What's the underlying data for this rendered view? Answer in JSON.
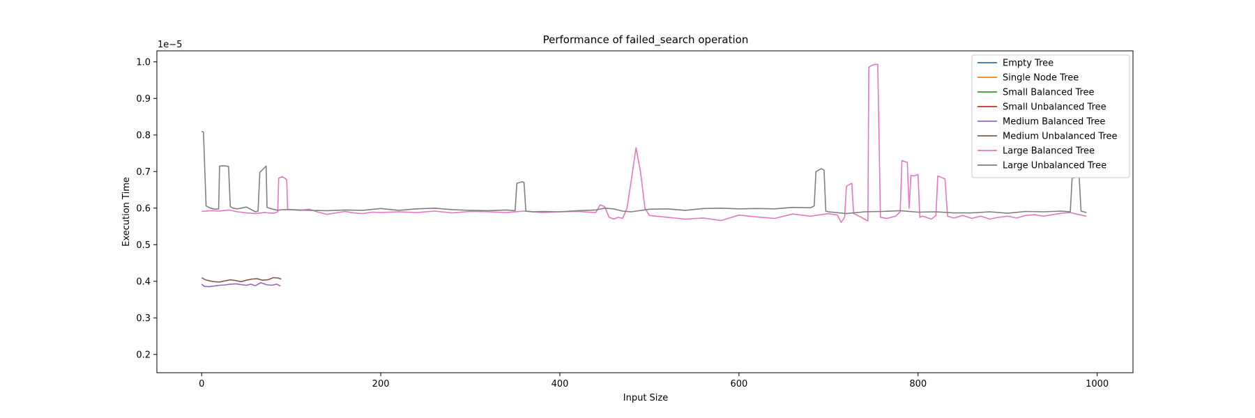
{
  "chart_data": {
    "type": "line",
    "title": "Performance of failed_search operation",
    "xlabel": "Input Size",
    "ylabel": "Execution Time",
    "y_scale_label": "1e−5",
    "y_scale": 1e-05,
    "xlim": [
      -50,
      1040
    ],
    "ylim": [
      0.15,
      1.03
    ],
    "xticks": [
      0,
      200,
      400,
      600,
      800,
      1000
    ],
    "yticks": [
      0.2,
      0.3,
      0.4,
      0.5,
      0.6,
      0.7,
      0.8,
      0.9,
      1.0
    ],
    "ytick_labels": [
      "0.2",
      "0.3",
      "0.4",
      "0.5",
      "0.6",
      "0.7",
      "0.8",
      "0.9",
      "1.0"
    ],
    "grid": false,
    "legend_position": "top-right",
    "series": [
      {
        "name": "Empty Tree",
        "color": "#1f77b4",
        "x": [],
        "y": []
      },
      {
        "name": "Single Node Tree",
        "color": "#ff7f0e",
        "x": [],
        "y": []
      },
      {
        "name": "Small Balanced Tree",
        "color": "#2ca02c",
        "x": [],
        "y": []
      },
      {
        "name": "Small Unbalanced Tree",
        "color": "#d62728",
        "x": [],
        "y": []
      },
      {
        "name": "Medium Balanced Tree",
        "color": "#9467bd",
        "x": [
          0,
          3,
          8,
          14,
          20,
          26,
          32,
          38,
          44,
          50,
          55,
          60,
          66,
          72,
          78,
          84,
          88
        ],
        "y": [
          0.392,
          0.386,
          0.385,
          0.387,
          0.389,
          0.39,
          0.392,
          0.393,
          0.391,
          0.389,
          0.392,
          0.388,
          0.396,
          0.391,
          0.389,
          0.392,
          0.387
        ]
      },
      {
        "name": "Medium Unbalanced Tree",
        "color": "#8c564b",
        "x": [
          0,
          4,
          9,
          14,
          20,
          26,
          32,
          38,
          44,
          50,
          56,
          62,
          68,
          74,
          80,
          85,
          89
        ],
        "y": [
          0.41,
          0.404,
          0.401,
          0.399,
          0.398,
          0.401,
          0.404,
          0.402,
          0.399,
          0.403,
          0.406,
          0.407,
          0.403,
          0.404,
          0.41,
          0.409,
          0.406
        ]
      },
      {
        "name": "Large Balanced Tree",
        "color": "#e377c2",
        "x": [
          0,
          10,
          20,
          30,
          40,
          50,
          60,
          70,
          80,
          85,
          86,
          90,
          95,
          96,
          100,
          110,
          120,
          130,
          140,
          150,
          160,
          170,
          180,
          190,
          200,
          220,
          240,
          260,
          280,
          300,
          320,
          340,
          360,
          380,
          400,
          420,
          440,
          445,
          450,
          455,
          460,
          465,
          470,
          475,
          480,
          485,
          490,
          495,
          500,
          520,
          540,
          560,
          580,
          600,
          620,
          640,
          660,
          680,
          700,
          710,
          714,
          718,
          720,
          726,
          728,
          735,
          740,
          744,
          745,
          748,
          752,
          755,
          758,
          765,
          775,
          780,
          782,
          788,
          790,
          792,
          795,
          798,
          800,
          802,
          805,
          815,
          820,
          822,
          830,
          833,
          840,
          850,
          860,
          870,
          880,
          890,
          900,
          910,
          920,
          930,
          940,
          950,
          960,
          970,
          980,
          988
        ],
        "y": [
          0.591,
          0.593,
          0.592,
          0.595,
          0.59,
          0.587,
          0.585,
          0.588,
          0.586,
          0.59,
          0.682,
          0.686,
          0.678,
          0.597,
          0.596,
          0.594,
          0.597,
          0.589,
          0.583,
          0.587,
          0.591,
          0.587,
          0.585,
          0.589,
          0.588,
          0.59,
          0.588,
          0.592,
          0.587,
          0.591,
          0.59,
          0.588,
          0.592,
          0.588,
          0.59,
          0.591,
          0.588,
          0.609,
          0.604,
          0.575,
          0.57,
          0.575,
          0.572,
          0.6,
          0.68,
          0.765,
          0.7,
          0.6,
          0.58,
          0.575,
          0.57,
          0.573,
          0.566,
          0.581,
          0.576,
          0.572,
          0.584,
          0.578,
          0.585,
          0.581,
          0.561,
          0.575,
          0.66,
          0.668,
          0.585,
          0.577,
          0.57,
          0.565,
          0.985,
          0.99,
          0.993,
          0.993,
          0.575,
          0.572,
          0.578,
          0.59,
          0.73,
          0.725,
          0.6,
          0.69,
          0.688,
          0.69,
          0.692,
          0.575,
          0.578,
          0.57,
          0.58,
          0.688,
          0.68,
          0.578,
          0.573,
          0.58,
          0.572,
          0.578,
          0.57,
          0.575,
          0.578,
          0.573,
          0.58,
          0.582,
          0.578,
          0.582,
          0.586,
          0.588,
          0.582,
          0.578
        ]
      },
      {
        "name": "Large Unbalanced Tree",
        "color": "#7f7f7f",
        "x": [
          0,
          2,
          5,
          10,
          15,
          19,
          20,
          25,
          30,
          32,
          35,
          40,
          50,
          60,
          63,
          65,
          68,
          72,
          73,
          78,
          85,
          90,
          100,
          120,
          140,
          160,
          180,
          200,
          220,
          240,
          260,
          280,
          300,
          320,
          340,
          350,
          352,
          358,
          360,
          362,
          370,
          380,
          400,
          420,
          440,
          450,
          460,
          470,
          480,
          500,
          520,
          540,
          560,
          580,
          600,
          620,
          640,
          660,
          680,
          684,
          686,
          692,
          695,
          697,
          700,
          720,
          740,
          760,
          780,
          800,
          820,
          840,
          860,
          880,
          900,
          920,
          940,
          960,
          970,
          972,
          978,
          980,
          982,
          988
        ],
        "y": [
          0.81,
          0.808,
          0.606,
          0.6,
          0.597,
          0.598,
          0.715,
          0.716,
          0.714,
          0.604,
          0.6,
          0.598,
          0.603,
          0.59,
          0.592,
          0.698,
          0.705,
          0.715,
          0.602,
          0.598,
          0.594,
          0.596,
          0.596,
          0.594,
          0.593,
          0.595,
          0.594,
          0.599,
          0.594,
          0.598,
          0.6,
          0.596,
          0.594,
          0.593,
          0.595,
          0.593,
          0.668,
          0.672,
          0.67,
          0.592,
          0.59,
          0.591,
          0.59,
          0.593,
          0.595,
          0.6,
          0.598,
          0.592,
          0.59,
          0.597,
          0.598,
          0.594,
          0.599,
          0.6,
          0.598,
          0.599,
          0.598,
          0.602,
          0.601,
          0.606,
          0.7,
          0.708,
          0.704,
          0.592,
          0.59,
          0.585,
          0.59,
          0.591,
          0.593,
          0.589,
          0.59,
          0.587,
          0.587,
          0.59,
          0.586,
          0.591,
          0.59,
          0.592,
          0.59,
          0.682,
          0.685,
          0.683,
          0.592,
          0.588
        ]
      }
    ]
  }
}
